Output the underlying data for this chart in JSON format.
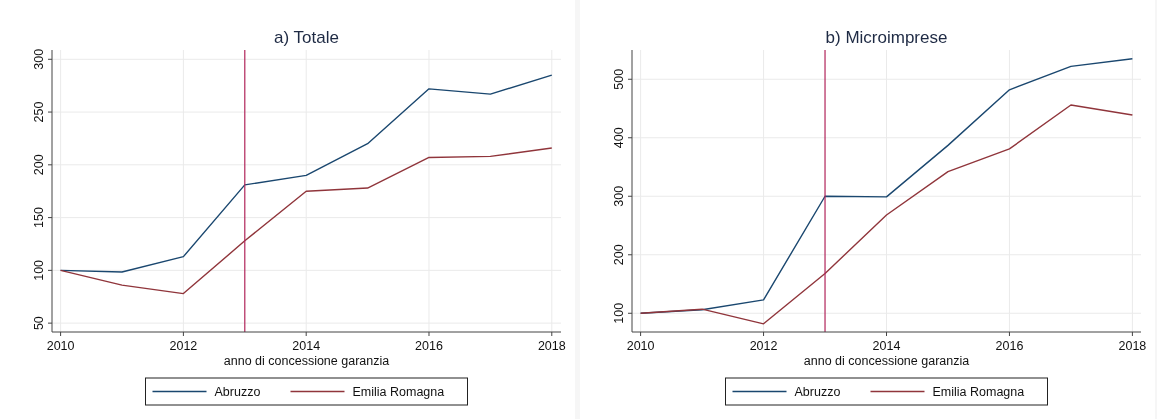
{
  "chart_data": [
    {
      "type": "line",
      "title": "a) Totale",
      "xlabel": "anno di concessione garanzia",
      "x": [
        2010,
        2011,
        2012,
        2013,
        2014,
        2015,
        2016,
        2017,
        2018
      ],
      "series": [
        {
          "name": "Abruzzo",
          "color": "#1a476f",
          "values": [
            100,
            98.5,
            113,
            181,
            190,
            220,
            272,
            267,
            285
          ]
        },
        {
          "name": "Emilia Romagna",
          "color": "#90353b",
          "values": [
            100,
            86,
            78,
            128,
            175,
            178,
            207,
            208,
            216
          ]
        }
      ],
      "xlim": [
        2009.86,
        2018.15
      ],
      "xticks": [
        2010,
        2012,
        2014,
        2016,
        2018
      ],
      "ylim": [
        41.6,
        308.8
      ],
      "yticks": [
        50,
        100,
        150,
        200,
        250,
        300
      ],
      "ref_lines": [
        {
          "axis": "x",
          "value": 2013,
          "color": "#b0245a"
        }
      ],
      "grid": true,
      "legend": "bottom",
      "line_style": "solid",
      "marker": "none"
    },
    {
      "type": "line",
      "title": "b) Microimprese",
      "xlabel": "anno di concessione garanzia",
      "x": [
        2010,
        2011,
        2012,
        2013,
        2014,
        2015,
        2016,
        2017,
        2018
      ],
      "series": [
        {
          "name": "Abruzzo",
          "color": "#1a476f",
          "values": [
            100,
            106,
            123,
            300,
            299,
            387,
            482,
            522,
            535
          ]
        },
        {
          "name": "Emilia Romagna",
          "color": "#90353b",
          "values": [
            100,
            107,
            82,
            168,
            268,
            342,
            381,
            456,
            439
          ]
        }
      ],
      "xlim": [
        2009.86,
        2018.14
      ],
      "xticks": [
        2010,
        2012,
        2014,
        2016,
        2018
      ],
      "ylim": [
        68,
        550
      ],
      "yticks": [
        100,
        200,
        300,
        400,
        500
      ],
      "ref_lines": [
        {
          "axis": "x",
          "value": 2013,
          "color": "#b0245a"
        }
      ],
      "grid": true,
      "legend": "bottom",
      "line_style": "solid",
      "marker": "none"
    }
  ]
}
